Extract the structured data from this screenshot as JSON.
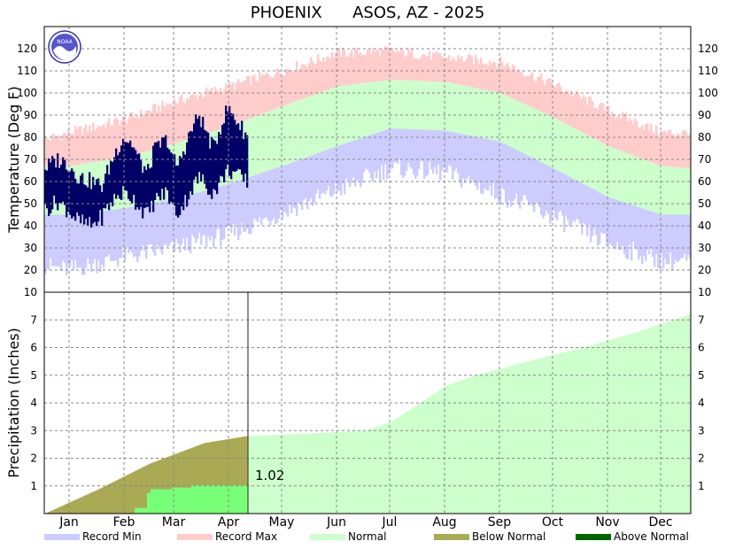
{
  "header": {
    "station": "PHOENIX",
    "network": "ASOS, AZ - 2025"
  },
  "logo": {
    "text": "NOAA"
  },
  "colors": {
    "record_min": "#ccccff",
    "record_max": "#ffcccc",
    "normal": "#ccffcc",
    "observed_temp": "#000066",
    "below_normal": "#aaaa55",
    "observed_precip": "#77ff77",
    "above_normal": "#006600"
  },
  "chart_data": [
    {
      "type": "area",
      "panel": "temperature",
      "ylabel": "Temperature (Deg F)",
      "ylim": [
        10,
        130
      ],
      "yticks": [
        10,
        20,
        30,
        40,
        50,
        60,
        70,
        80,
        90,
        100,
        110,
        120
      ],
      "x_months": [
        "Jan",
        "Feb",
        "Mar",
        "Apr",
        "May",
        "Jun",
        "Jul",
        "Aug",
        "Sep",
        "Oct",
        "Nov",
        "Dec"
      ],
      "x_domain_days": [
        1,
        365
      ],
      "grid": true,
      "observed_through_day": 115,
      "normal_high_anchors": [
        [
          1,
          67
        ],
        [
          15,
          67
        ],
        [
          46,
          71
        ],
        [
          74,
          77
        ],
        [
          105,
          85
        ],
        [
          135,
          94
        ],
        [
          166,
          103
        ],
        [
          196,
          106
        ],
        [
          227,
          105
        ],
        [
          258,
          100
        ],
        [
          288,
          89
        ],
        [
          319,
          76
        ],
        [
          349,
          67
        ],
        [
          365,
          66
        ]
      ],
      "normal_low_anchors": [
        [
          1,
          45
        ],
        [
          15,
          45
        ],
        [
          46,
          48
        ],
        [
          74,
          52
        ],
        [
          105,
          59
        ],
        [
          135,
          67
        ],
        [
          166,
          76
        ],
        [
          196,
          84
        ],
        [
          227,
          83
        ],
        [
          258,
          78
        ],
        [
          288,
          66
        ],
        [
          319,
          53
        ],
        [
          349,
          45
        ],
        [
          365,
          45
        ]
      ],
      "record_high_anchors": [
        [
          1,
          79
        ],
        [
          15,
          82
        ],
        [
          46,
          88
        ],
        [
          74,
          96
        ],
        [
          105,
          103
        ],
        [
          135,
          110
        ],
        [
          166,
          118
        ],
        [
          196,
          119
        ],
        [
          227,
          116
        ],
        [
          258,
          114
        ],
        [
          288,
          104
        ],
        [
          319,
          92
        ],
        [
          349,
          82
        ],
        [
          365,
          82
        ]
      ],
      "record_low_anchors": [
        [
          1,
          22
        ],
        [
          15,
          20
        ],
        [
          46,
          26
        ],
        [
          74,
          30
        ],
        [
          105,
          36
        ],
        [
          135,
          46
        ],
        [
          166,
          56
        ],
        [
          196,
          66
        ],
        [
          227,
          64
        ],
        [
          258,
          54
        ],
        [
          288,
          44
        ],
        [
          319,
          32
        ],
        [
          349,
          24
        ],
        [
          365,
          24
        ]
      ],
      "observed_high_anchors": [
        [
          1,
          66
        ],
        [
          8,
          70
        ],
        [
          14,
          68
        ],
        [
          20,
          62
        ],
        [
          27,
          60
        ],
        [
          33,
          58
        ],
        [
          36,
          64
        ],
        [
          40,
          72
        ],
        [
          45,
          80
        ],
        [
          50,
          77
        ],
        [
          55,
          68
        ],
        [
          59,
          64
        ],
        [
          62,
          73
        ],
        [
          65,
          76
        ],
        [
          70,
          79
        ],
        [
          73,
          70
        ],
        [
          76,
          67
        ],
        [
          80,
          76
        ],
        [
          84,
          84
        ],
        [
          88,
          90
        ],
        [
          92,
          82
        ],
        [
          96,
          75
        ],
        [
          100,
          85
        ],
        [
          104,
          93
        ],
        [
          108,
          89
        ],
        [
          112,
          84
        ],
        [
          115,
          81
        ]
      ],
      "observed_low_anchors": [
        [
          1,
          47
        ],
        [
          8,
          51
        ],
        [
          14,
          47
        ],
        [
          20,
          42
        ],
        [
          27,
          40
        ],
        [
          33,
          44
        ],
        [
          36,
          48
        ],
        [
          40,
          52
        ],
        [
          45,
          55
        ],
        [
          50,
          53
        ],
        [
          55,
          48
        ],
        [
          59,
          45
        ],
        [
          62,
          50
        ],
        [
          65,
          53
        ],
        [
          70,
          55
        ],
        [
          73,
          48
        ],
        [
          76,
          46
        ],
        [
          80,
          51
        ],
        [
          84,
          57
        ],
        [
          88,
          62
        ],
        [
          92,
          58
        ],
        [
          96,
          55
        ],
        [
          100,
          60
        ],
        [
          104,
          65
        ],
        [
          108,
          64
        ],
        [
          112,
          61
        ],
        [
          115,
          60
        ]
      ]
    },
    {
      "type": "area",
      "panel": "precipitation",
      "ylabel": "Precipitation (Inches)",
      "ylim": [
        0,
        8
      ],
      "yticks": [
        1,
        2,
        3,
        4,
        5,
        6,
        7
      ],
      "grid": true,
      "observed_total_label": "1.02",
      "observed_cumulative_steps": [
        [
          1,
          0.0
        ],
        [
          52,
          0.2
        ],
        [
          59,
          0.75
        ],
        [
          61,
          0.88
        ],
        [
          73,
          0.94
        ],
        [
          84,
          1.02
        ],
        [
          115,
          1.02
        ]
      ],
      "normal_cumulative_anchors": [
        [
          1,
          0.0
        ],
        [
          32,
          0.9
        ],
        [
          60,
          1.8
        ],
        [
          91,
          2.55
        ],
        [
          115,
          2.8
        ],
        [
          152,
          2.9
        ],
        [
          182,
          3.0
        ],
        [
          196,
          3.3
        ],
        [
          213,
          4.0
        ],
        [
          227,
          4.6
        ],
        [
          244,
          5.0
        ],
        [
          274,
          5.5
        ],
        [
          305,
          6.0
        ],
        [
          335,
          6.55
        ],
        [
          365,
          7.2
        ]
      ]
    }
  ],
  "legend": [
    {
      "label": "Record Min",
      "color": "#ccccff"
    },
    {
      "label": "Record Max",
      "color": "#ffcccc"
    },
    {
      "label": "Normal",
      "color": "#ccffcc"
    },
    {
      "label": "Below Normal",
      "color": "#aaaa55"
    },
    {
      "label": "Above Normal",
      "color": "#006600"
    }
  ]
}
